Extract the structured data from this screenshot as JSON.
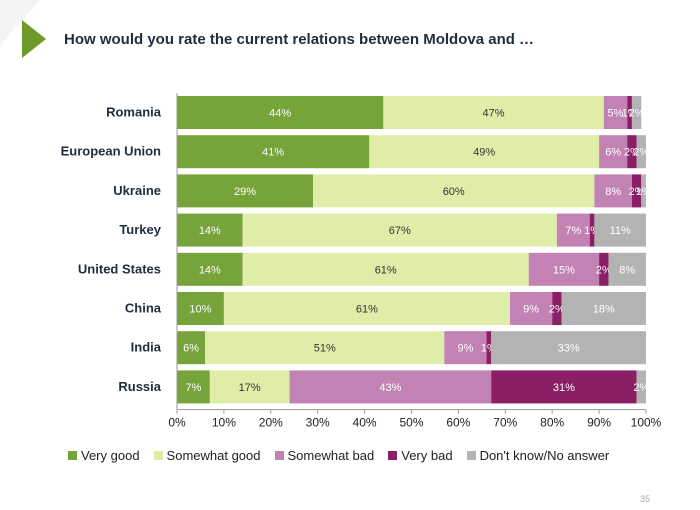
{
  "title": "How would you rate the current relations between Moldova and …",
  "page_number": "35",
  "colors": {
    "very_good": "#76a33a",
    "somewhat_good": "#e0eda8",
    "somewhat_bad": "#c382b4",
    "very_bad": "#8b1f65",
    "dont_know": "#b3b3b3",
    "accent": "#6e9a2c"
  },
  "chart_data": {
    "type": "bar",
    "orientation": "horizontal",
    "stacked": true,
    "categories": [
      "Romania",
      "European Union",
      "Ukraine",
      "Turkey",
      "United States",
      "China",
      "India",
      "Russia"
    ],
    "series": [
      {
        "name": "Very good",
        "values": [
          44,
          41,
          29,
          14,
          14,
          10,
          6,
          7
        ],
        "labels": [
          "44%",
          "41%",
          "29%",
          "14%",
          "14%",
          "10%",
          "6%",
          "7%"
        ]
      },
      {
        "name": "Somewhat good",
        "values": [
          47,
          49,
          60,
          67,
          61,
          61,
          51,
          17
        ],
        "labels": [
          "47%",
          "49%",
          "60%",
          "67%",
          "61%",
          "61%",
          "51%",
          "17%"
        ]
      },
      {
        "name": "Somewhat bad",
        "values": [
          5,
          6,
          8,
          7,
          15,
          9,
          9,
          43
        ],
        "labels": [
          "5%",
          "6%",
          "8%",
          "7%",
          "15%",
          "9%",
          "9%",
          "43%"
        ]
      },
      {
        "name": "Very bad",
        "values": [
          1,
          2,
          2,
          1,
          2,
          2,
          1,
          31
        ],
        "labels": [
          "1%",
          "2%",
          "2%",
          "1%",
          "2%",
          "2%",
          "1%",
          "31%"
        ]
      },
      {
        "name": "Don't know/No answer",
        "values": [
          2,
          2,
          1,
          11,
          8,
          18,
          33,
          2
        ],
        "labels": [
          "2%",
          "2%",
          "1%",
          "11%",
          "8%",
          "18%",
          "33%",
          "2%"
        ]
      }
    ],
    "xlim": [
      0,
      100
    ],
    "xticks": [
      "0%",
      "10%",
      "20%",
      "30%",
      "40%",
      "50%",
      "60%",
      "70%",
      "80%",
      "90%",
      "100%"
    ],
    "legend_position": "bottom",
    "grid": false
  }
}
